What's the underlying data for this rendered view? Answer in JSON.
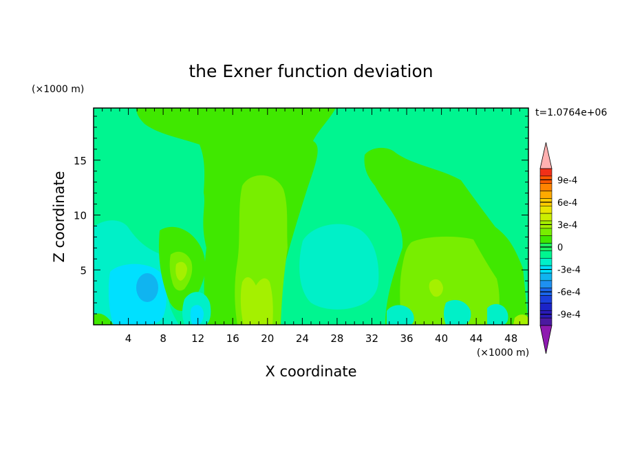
{
  "chart_data": {
    "type": "heatmap",
    "title": "the Exner function deviation",
    "xlabel": "X coordinate",
    "ylabel": "Z coordinate",
    "x_unit": "(×1000 m)",
    "y_unit": "(×1000 m)",
    "time_label": "t=1.0764e+06",
    "xlim": [
      0,
      50
    ],
    "ylim": [
      0,
      19.75
    ],
    "x_ticks": [
      4,
      8,
      12,
      16,
      20,
      24,
      28,
      32,
      36,
      40,
      44,
      48
    ],
    "y_ticks": [
      5,
      10,
      15
    ],
    "colorbar": {
      "levels": [
        -0.0011,
        -0.001,
        -0.0009,
        -0.0008,
        -0.0007,
        -0.0006,
        -0.0005,
        -0.0004,
        -0.0003,
        -0.0002,
        -0.0001,
        0,
        0.0001,
        0.0002,
        0.0003,
        0.0004,
        0.0005,
        0.0006,
        0.0007,
        0.0008,
        0.0009,
        0.001,
        0.0011
      ],
      "labels": [
        "9e-4",
        "6e-4",
        "3e-4",
        "0",
        "-3e-4",
        "-6e-4",
        "-9e-4"
      ],
      "label_values": [
        0.0009,
        0.0006,
        0.0003,
        0,
        -0.0003,
        -0.0006,
        -0.0009
      ],
      "colors": [
        "#4b1aa0",
        "#2a1ab8",
        "#1b24c8",
        "#1a40dc",
        "#1a66ea",
        "#1e90f0",
        "#10b4f0",
        "#00e0ff",
        "#00f0c8",
        "#00f590",
        "#1ef060",
        "#40e800",
        "#78ee00",
        "#a5f000",
        "#ccee00",
        "#e8e400",
        "#ffcc00",
        "#ffaa00",
        "#ff8400",
        "#ff5a00",
        "#f03018",
        "#ffb0b0",
        "#8e1ab0"
      ],
      "over_color": "#ffb0b0",
      "under_color": "#8e1ab0"
    },
    "field_description_levels": {
      "background": 5e-05,
      "features": [
        {
          "name": "upper-central-plume",
          "value": 5e-05
        },
        {
          "name": "central-core",
          "value": 0.00015
        },
        {
          "name": "left-lower-anomaly",
          "value": -0.00015
        },
        {
          "name": "left-core",
          "value": -0.00035
        },
        {
          "name": "mid-lower-anomaly",
          "value": -0.00015
        },
        {
          "name": "right-lower-block",
          "value": 0.00015
        }
      ]
    }
  }
}
